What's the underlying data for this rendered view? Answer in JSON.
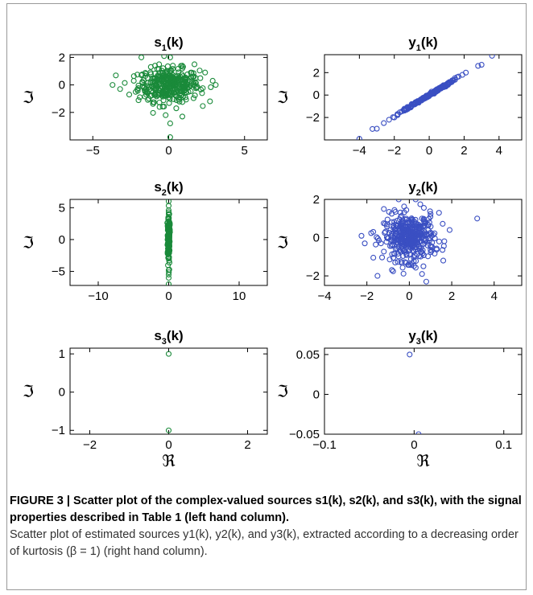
{
  "caption": {
    "heading": "FIGURE 3 | Scatter plot of the complex-valued sources s1(k), s2(k), and s3(k), with the signal properties described in Table 1 (left hand column).",
    "body": "Scatter plot of estimated sources y1(k), y2(k), and y3(k), extracted according to a decreasing order of kurtosis (β = 1) (right hand column)."
  },
  "colors": {
    "green_series": "#1a8a3a",
    "blue_series": "#3a4fc2"
  },
  "chart_data": [
    {
      "type": "scatter",
      "title": "s1(k)",
      "xlabel": "",
      "ylabel": "ℑ",
      "xlim": [
        -6.5,
        6.5
      ],
      "ylim": [
        -4,
        2.2
      ],
      "xticks": [
        -5,
        0,
        5
      ],
      "yticks": [
        -2,
        0,
        2
      ],
      "color": "#1a8a3a",
      "points": [
        [
          -0.3,
          2.1
        ],
        [
          -1.8,
          2.0
        ],
        [
          0.1,
          2.0
        ],
        [
          1.7,
          1.5
        ],
        [
          -0.9,
          1.4
        ],
        [
          0.9,
          1.2
        ],
        [
          -2.3,
          0.3
        ],
        [
          -3.7,
          0.0
        ],
        [
          -3.2,
          -0.3
        ],
        [
          2.9,
          0.3
        ],
        [
          3.1,
          0.0
        ],
        [
          2.2,
          -0.6
        ],
        [
          -1.3,
          -1.0
        ],
        [
          1.1,
          -0.9
        ],
        [
          -0.6,
          -1.6
        ],
        [
          0.5,
          -1.7
        ],
        [
          0.9,
          -2.3
        ],
        [
          0.1,
          -2.8
        ],
        [
          -0.2,
          -2.2
        ],
        [
          0.1,
          -3.8
        ],
        [
          -1.5,
          0.8
        ],
        [
          1.6,
          0.6
        ],
        [
          -2.6,
          -0.7
        ],
        [
          2.4,
          0.9
        ]
      ],
      "dense_cluster": {
        "center": [
          0,
          0
        ],
        "spread": [
          1.0,
          0.6
        ],
        "count": 350
      }
    },
    {
      "type": "scatter",
      "title": "y1(k)",
      "xlabel": "",
      "ylabel": "ℑ",
      "xlim": [
        -6,
        5.3
      ],
      "ylim": [
        -4,
        3.6
      ],
      "xticks": [
        -4,
        -2,
        0,
        2,
        4
      ],
      "yticks": [
        -2,
        0,
        2
      ],
      "color": "#3a4fc2",
      "points": [
        [
          -4.0,
          -3.9
        ],
        [
          -3.0,
          -3.0
        ],
        [
          -2.6,
          -2.5
        ],
        [
          -2.3,
          -2.2
        ],
        [
          -2.0,
          -2.0
        ],
        [
          1.6,
          1.6
        ],
        [
          1.9,
          1.8
        ],
        [
          2.1,
          2.0
        ],
        [
          2.8,
          2.6
        ],
        [
          3.0,
          2.7
        ],
        [
          3.6,
          3.5
        ]
      ],
      "dense_cluster": {
        "center": [
          0,
          0
        ],
        "spread": [
          0.8,
          0.8
        ],
        "count": 200,
        "correlated": true
      }
    },
    {
      "type": "scatter",
      "title": "s2(k)",
      "xlabel": "",
      "ylabel": "ℑ",
      "xlim": [
        -14,
        14
      ],
      "ylim": [
        -7.2,
        6.3
      ],
      "xticks": [
        -10,
        0,
        10
      ],
      "yticks": [
        -5,
        0,
        5
      ],
      "color": "#1a8a3a",
      "points": [
        [
          0,
          6.0
        ],
        [
          0,
          5.3
        ],
        [
          0,
          4.6
        ],
        [
          0,
          4.0
        ],
        [
          0,
          -5.5
        ],
        [
          0,
          -6.0
        ],
        [
          0,
          -7.0
        ],
        [
          0,
          -4.8
        ]
      ],
      "dense_cluster": {
        "center": [
          0,
          0
        ],
        "spread": [
          0.0,
          1.8
        ],
        "count": 180
      }
    },
    {
      "type": "scatter",
      "title": "y2(k)",
      "xlabel": "",
      "ylabel": "ℑ",
      "xlim": [
        -4,
        5.3
      ],
      "ylim": [
        -2.5,
        2.0
      ],
      "xticks": [
        -4,
        -2,
        0,
        2,
        4
      ],
      "yticks": [
        -2,
        0,
        2
      ],
      "color": "#3a4fc2",
      "points": [
        [
          3.2,
          1.0
        ],
        [
          -1.7,
          0.3
        ],
        [
          -1.5,
          -2.0
        ],
        [
          -0.5,
          2.0
        ],
        [
          0.3,
          2.0
        ],
        [
          0.8,
          -2.3
        ],
        [
          -1.2,
          1.5
        ],
        [
          1.4,
          1.3
        ],
        [
          1.9,
          0.4
        ],
        [
          -2.1,
          -0.3
        ],
        [
          1.6,
          -1.2
        ],
        [
          0.6,
          -1.9
        ]
      ],
      "dense_cluster": {
        "center": [
          0,
          0
        ],
        "spread": [
          0.6,
          0.6
        ],
        "count": 400
      }
    },
    {
      "type": "scatter",
      "title": "s3(k)",
      "xlabel": "ℜ",
      "ylabel": "ℑ",
      "xlim": [
        -2.5,
        2.5
      ],
      "ylim": [
        -1.1,
        1.15
      ],
      "xticks": [
        -2,
        0,
        2
      ],
      "yticks": [
        -1,
        0,
        1
      ],
      "color": "#1a8a3a",
      "points": [
        [
          0,
          1.0
        ],
        [
          0,
          -1.0
        ]
      ]
    },
    {
      "type": "scatter",
      "title": "y3(k)",
      "xlabel": "ℜ",
      "ylabel": "ℑ",
      "xlim": [
        -0.1,
        0.12
      ],
      "ylim": [
        -0.05,
        0.058
      ],
      "xticks": [
        -0.1,
        0,
        0.1
      ],
      "yticks": [
        -0.05,
        0,
        0.05
      ],
      "color": "#3a4fc2",
      "points": [
        [
          -0.005,
          0.05
        ],
        [
          0.005,
          -0.05
        ]
      ]
    }
  ]
}
